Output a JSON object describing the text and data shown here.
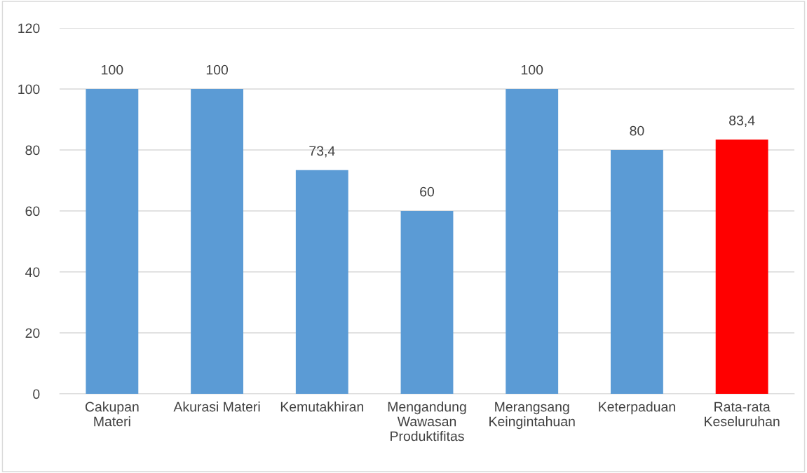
{
  "chart_data": {
    "type": "bar",
    "categories": [
      "Cakupan\nMateri",
      "Akurasi Materi",
      "Kemutakhiran",
      "Mengandung\nWawasan\nProduktifitas",
      "Merangsang\nKeingintahuan",
      "Keterpaduan",
      "Rata-rata\nKeseluruhan"
    ],
    "values": [
      100,
      100,
      73.4,
      60,
      100,
      80,
      83.4
    ],
    "colors": [
      "#5b9bd5",
      "#5b9bd5",
      "#5b9bd5",
      "#5b9bd5",
      "#5b9bd5",
      "#5b9bd5",
      "#ff0000"
    ],
    "value_labels": [
      "100",
      "100",
      "73,4",
      "60",
      "100",
      "80",
      "83,4"
    ],
    "ylim": [
      0,
      120
    ],
    "yticks": [
      0,
      20,
      40,
      60,
      80,
      100,
      120
    ],
    "grid": "y",
    "legend": false
  }
}
